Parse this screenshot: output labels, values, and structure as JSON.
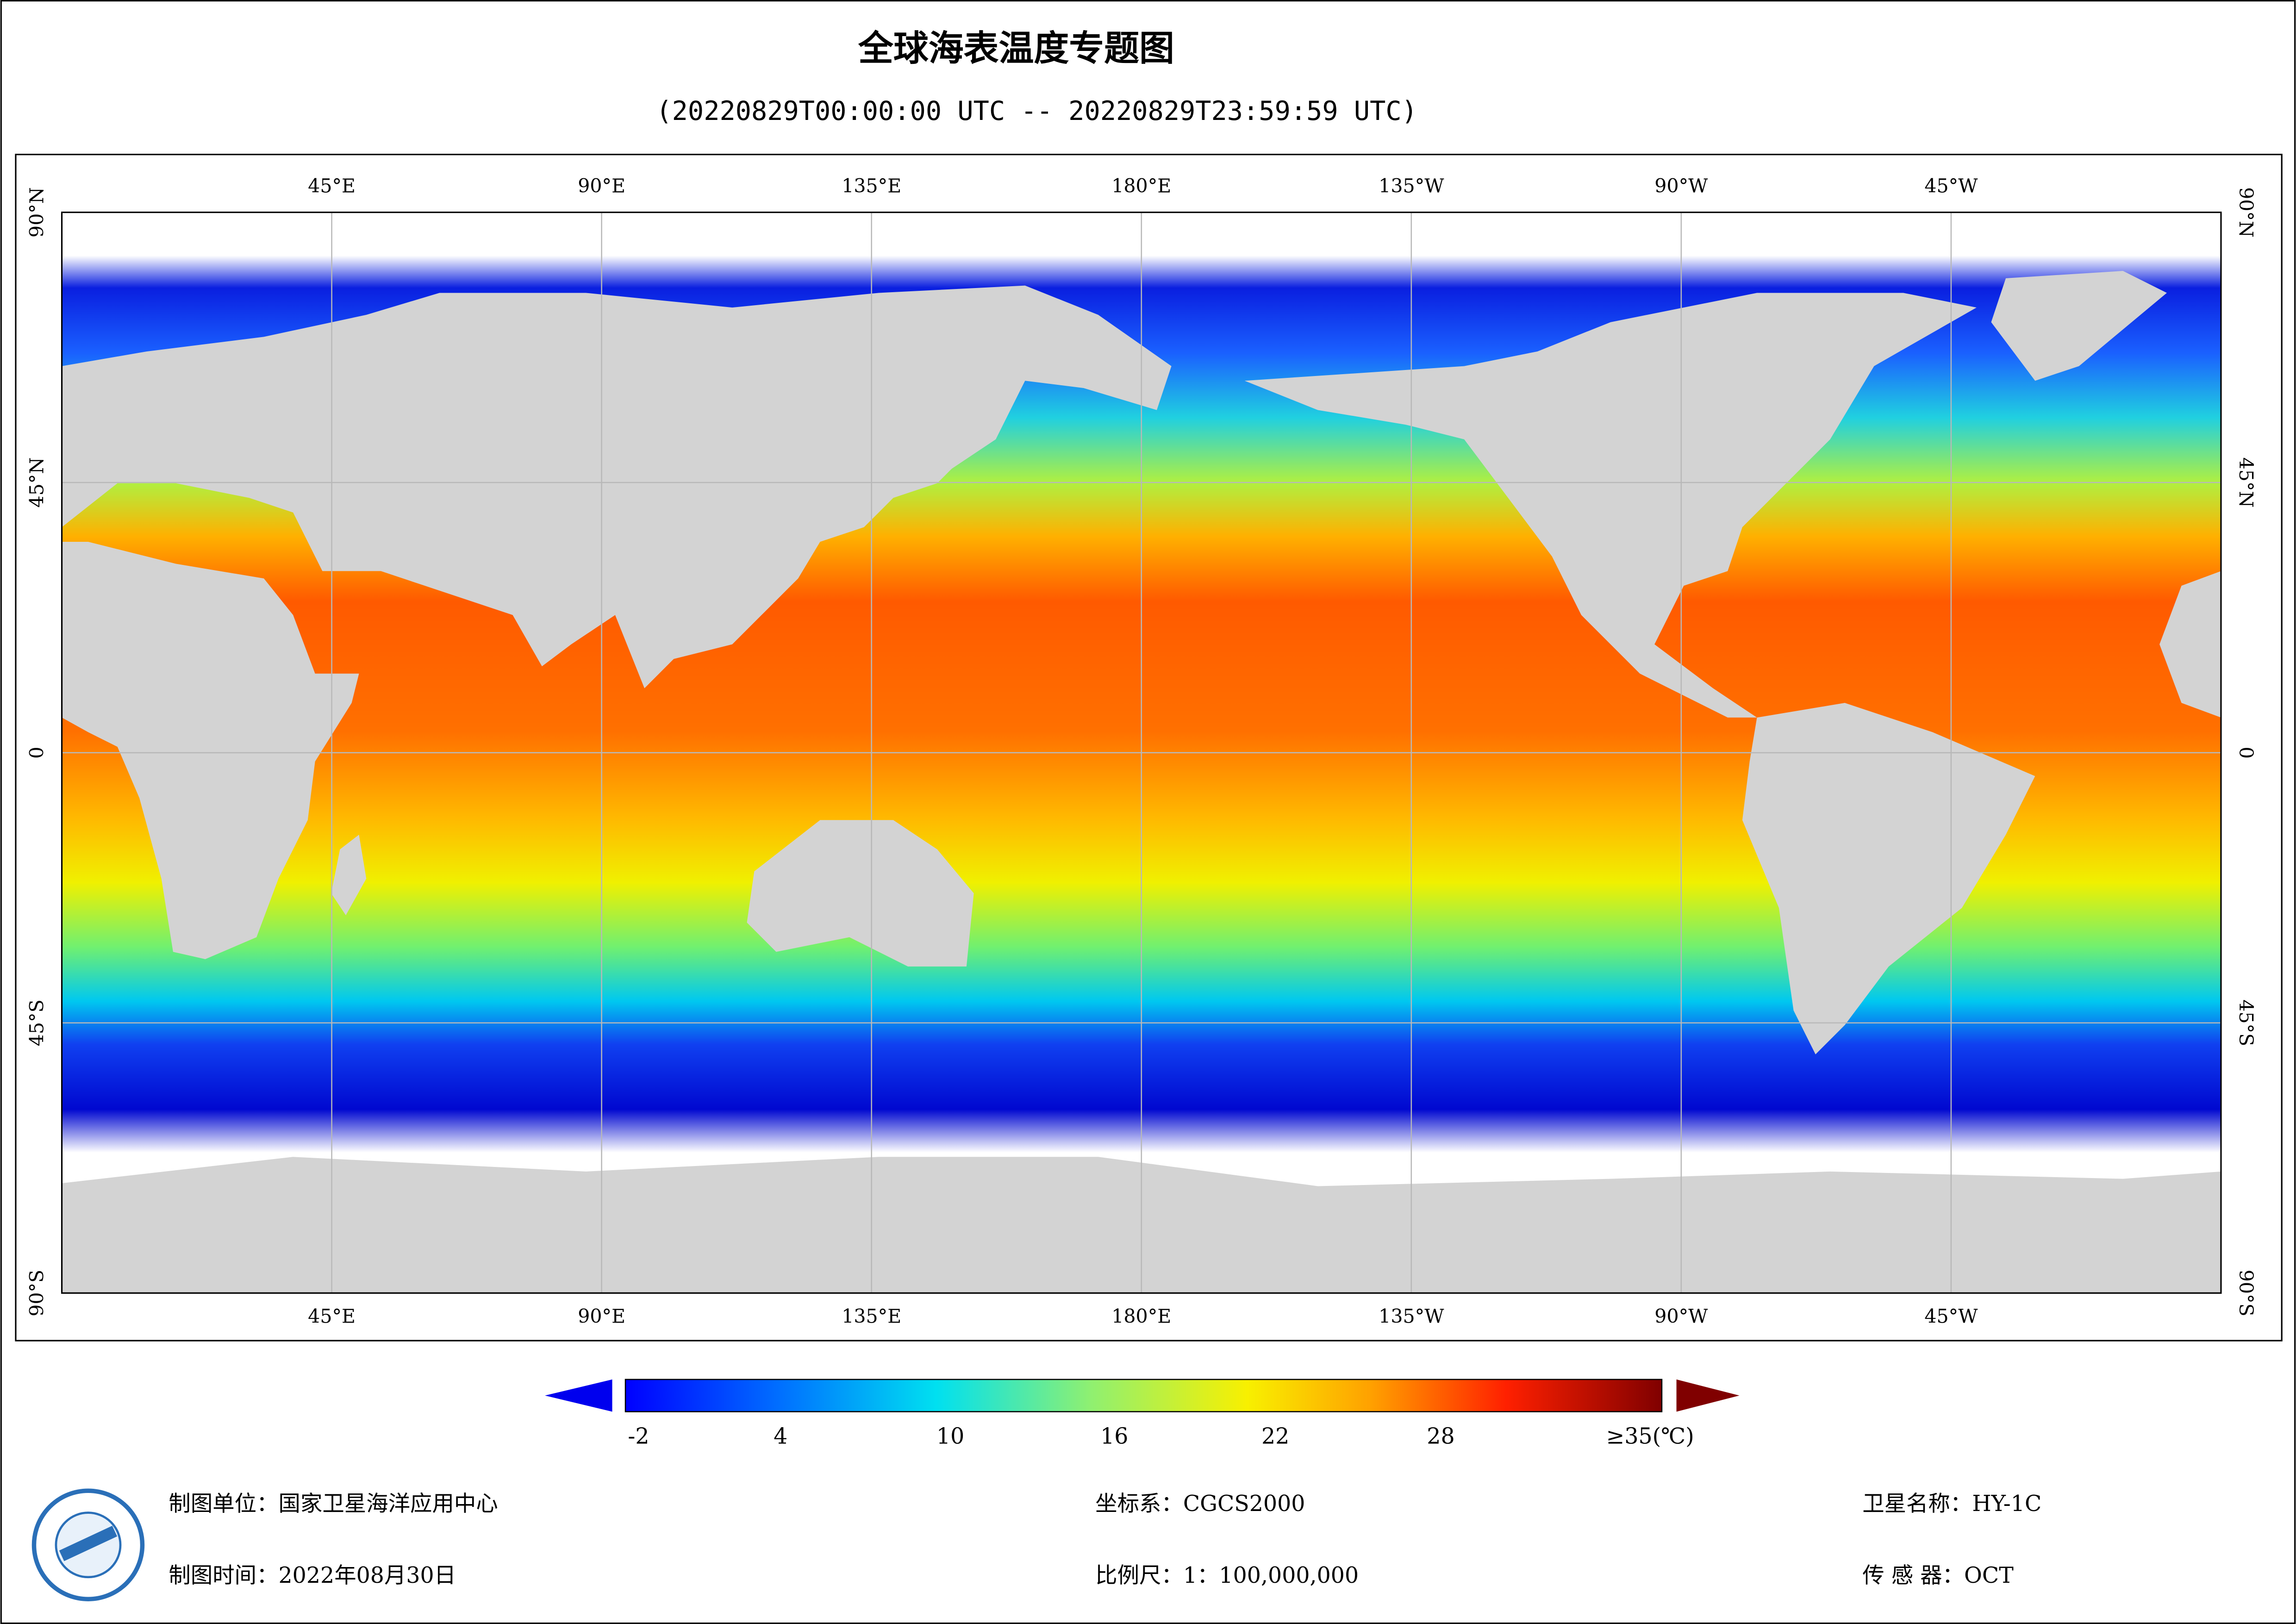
{
  "title": "全球海表温度专题图",
  "subtitle": "(20220829T00:00:00 UTC -- 20220829T23:59:59 UTC)",
  "map": {
    "lon_labels": [
      "45°E",
      "90°E",
      "135°E",
      "180°E",
      "135°W",
      "90°W",
      "45°W"
    ],
    "lat_labels": [
      "90°N",
      "45°N",
      "0",
      "45°S",
      "90°S"
    ]
  },
  "colorbar": {
    "labels": [
      "-2",
      "4",
      "10",
      "16",
      "22",
      "28",
      "≥35(℃)"
    ]
  },
  "footer": {
    "unit": "制图单位：国家卫星海洋应用中心",
    "time": "制图时间：2022年08月30日",
    "crs": "坐标系：CGCS2000",
    "scale": "比例尺：1：100,000,000",
    "satellite": "卫星名称：HY-1C",
    "sensor": "传 感 器：OCT"
  }
}
